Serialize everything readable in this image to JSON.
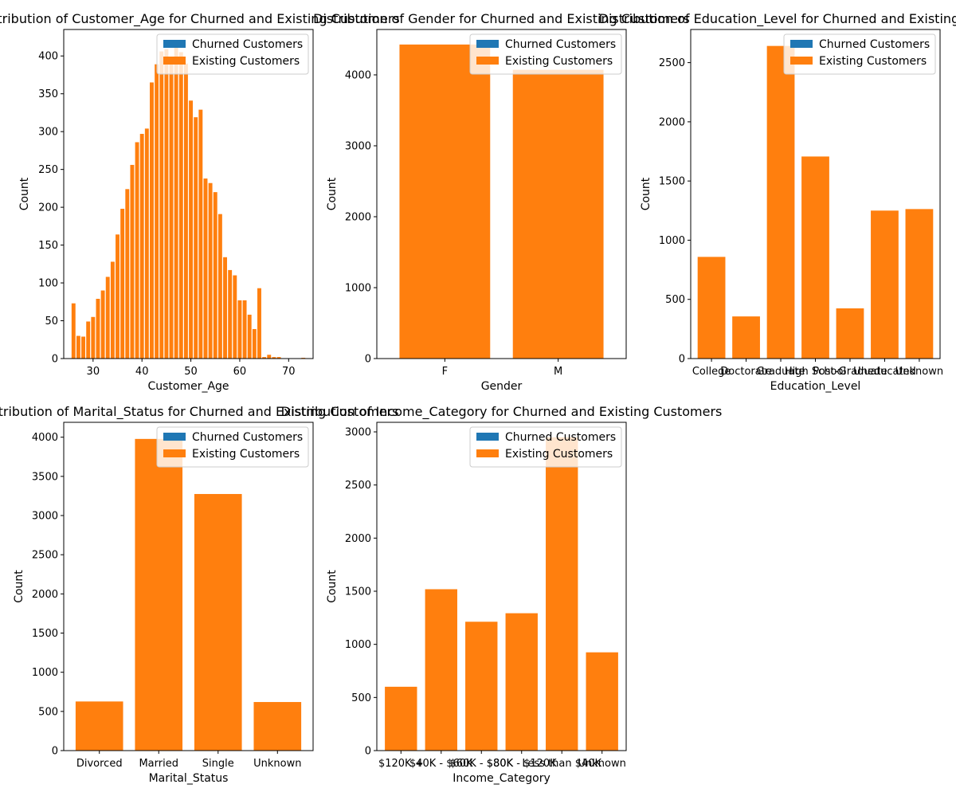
{
  "legend_labels": [
    "Churned Customers",
    "Existing Customers"
  ],
  "colors": {
    "churned": "#1f77b4",
    "existing": "#ff7f0e"
  },
  "chart_data": [
    {
      "type": "bar",
      "title": "Distribution of Customer_Age for Churned and Existing Customers",
      "xlabel": "Customer_Age",
      "ylabel": "Count",
      "xaxis": "numeric",
      "xlim": [
        24.0,
        75.0
      ],
      "xticks": [
        30,
        40,
        50,
        60,
        70
      ],
      "ylim": [
        0,
        435
      ],
      "yticks": [
        0,
        50,
        100,
        150,
        200,
        250,
        300,
        350,
        400
      ],
      "x": [
        26,
        27,
        28,
        29,
        30,
        31,
        32,
        33,
        34,
        35,
        36,
        37,
        38,
        39,
        40,
        41,
        42,
        43,
        44,
        45,
        46,
        47,
        48,
        49,
        50,
        51,
        52,
        53,
        54,
        55,
        56,
        57,
        58,
        59,
        60,
        61,
        62,
        63,
        64,
        65,
        66,
        67,
        68,
        70,
        73
      ],
      "series": [
        {
          "name": "Churned Customers",
          "values": [
            0,
            0,
            0,
            0,
            0,
            0,
            0,
            0,
            0,
            0,
            0,
            0,
            0,
            0,
            0,
            0,
            0,
            0,
            0,
            0,
            0,
            0,
            0,
            0,
            0,
            0,
            0,
            0,
            0,
            0,
            0,
            0,
            0,
            0,
            0,
            0,
            0,
            0,
            0,
            0,
            0,
            0,
            0,
            0,
            0
          ]
        },
        {
          "name": "Existing Customers",
          "values": [
            73,
            30,
            29,
            49,
            55,
            79,
            90,
            108,
            128,
            164,
            198,
            224,
            256,
            286,
            297,
            304,
            365,
            389,
            406,
            409,
            398,
            413,
            405,
            390,
            341,
            319,
            329,
            238,
            232,
            220,
            191,
            134,
            117,
            110,
            77,
            77,
            58,
            39,
            93,
            2,
            5,
            2,
            2,
            0,
            1
          ]
        }
      ],
      "legend": "top-right"
    },
    {
      "type": "bar",
      "title": "Distribution of Gender for Churned and Existing Customers",
      "xlabel": "Gender",
      "ylabel": "Count",
      "xaxis": "categorical",
      "categories": [
        "F",
        "M"
      ],
      "ylim": [
        0,
        4640
      ],
      "yticks": [
        0,
        1000,
        2000,
        3000,
        4000
      ],
      "series": [
        {
          "name": "Churned Customers",
          "values": [
            0,
            0
          ]
        },
        {
          "name": "Existing Customers",
          "values": [
            4428,
            4072
          ]
        }
      ],
      "legend": "top-right"
    },
    {
      "type": "bar",
      "title": "Distribution of Education_Level for Churned and Existing Customers",
      "xlabel": "Education_Level",
      "ylabel": "Count",
      "xaxis": "categorical",
      "categories": [
        "College",
        "Doctorate",
        "Graduate",
        "High School",
        "Post-Graduate",
        "Uneducated",
        "Unknown"
      ],
      "ylim": [
        0,
        2780
      ],
      "yticks": [
        0,
        500,
        1000,
        1500,
        2000,
        2500
      ],
      "series": [
        {
          "name": "Churned Customers",
          "values": [
            0,
            0,
            0,
            0,
            0,
            0,
            0
          ]
        },
        {
          "name": "Existing Customers",
          "values": [
            859,
            356,
            2641,
            1707,
            424,
            1250,
            1263
          ]
        }
      ],
      "legend": "top-right"
    },
    {
      "type": "bar",
      "title": "Distribution of Marital_Status for Churned and Existing Customers",
      "xlabel": "Marital_Status",
      "ylabel": "Count",
      "xaxis": "categorical",
      "categories": [
        "Divorced",
        "Married",
        "Single",
        "Unknown"
      ],
      "ylim": [
        0,
        4190
      ],
      "yticks": [
        0,
        500,
        1000,
        1500,
        2000,
        2500,
        3000,
        3500,
        4000
      ],
      "series": [
        {
          "name": "Churned Customers",
          "values": [
            0,
            0,
            0,
            0
          ]
        },
        {
          "name": "Existing Customers",
          "values": [
            627,
            3978,
            3275,
            620
          ]
        }
      ],
      "legend": "top-right"
    },
    {
      "type": "bar",
      "title": "Distribution of Income_Category for Churned and Existing Customers",
      "xlabel": "Income_Category",
      "ylabel": "Count",
      "xaxis": "categorical",
      "categories": [
        "$120K +",
        "$40K - $60K",
        "$60K - $80K",
        "$80K - $120K",
        "Less than $40K",
        "Unknown"
      ],
      "ylim": [
        0,
        3090
      ],
      "yticks": [
        0,
        500,
        1000,
        1500,
        2000,
        2500,
        3000
      ],
      "series": [
        {
          "name": "Churned Customers",
          "values": [
            0,
            0,
            0,
            0,
            0,
            0
          ]
        },
        {
          "name": "Existing Customers",
          "values": [
            601,
            1519,
            1213,
            1293,
            2949,
            925
          ]
        }
      ],
      "legend": "top-right"
    }
  ]
}
